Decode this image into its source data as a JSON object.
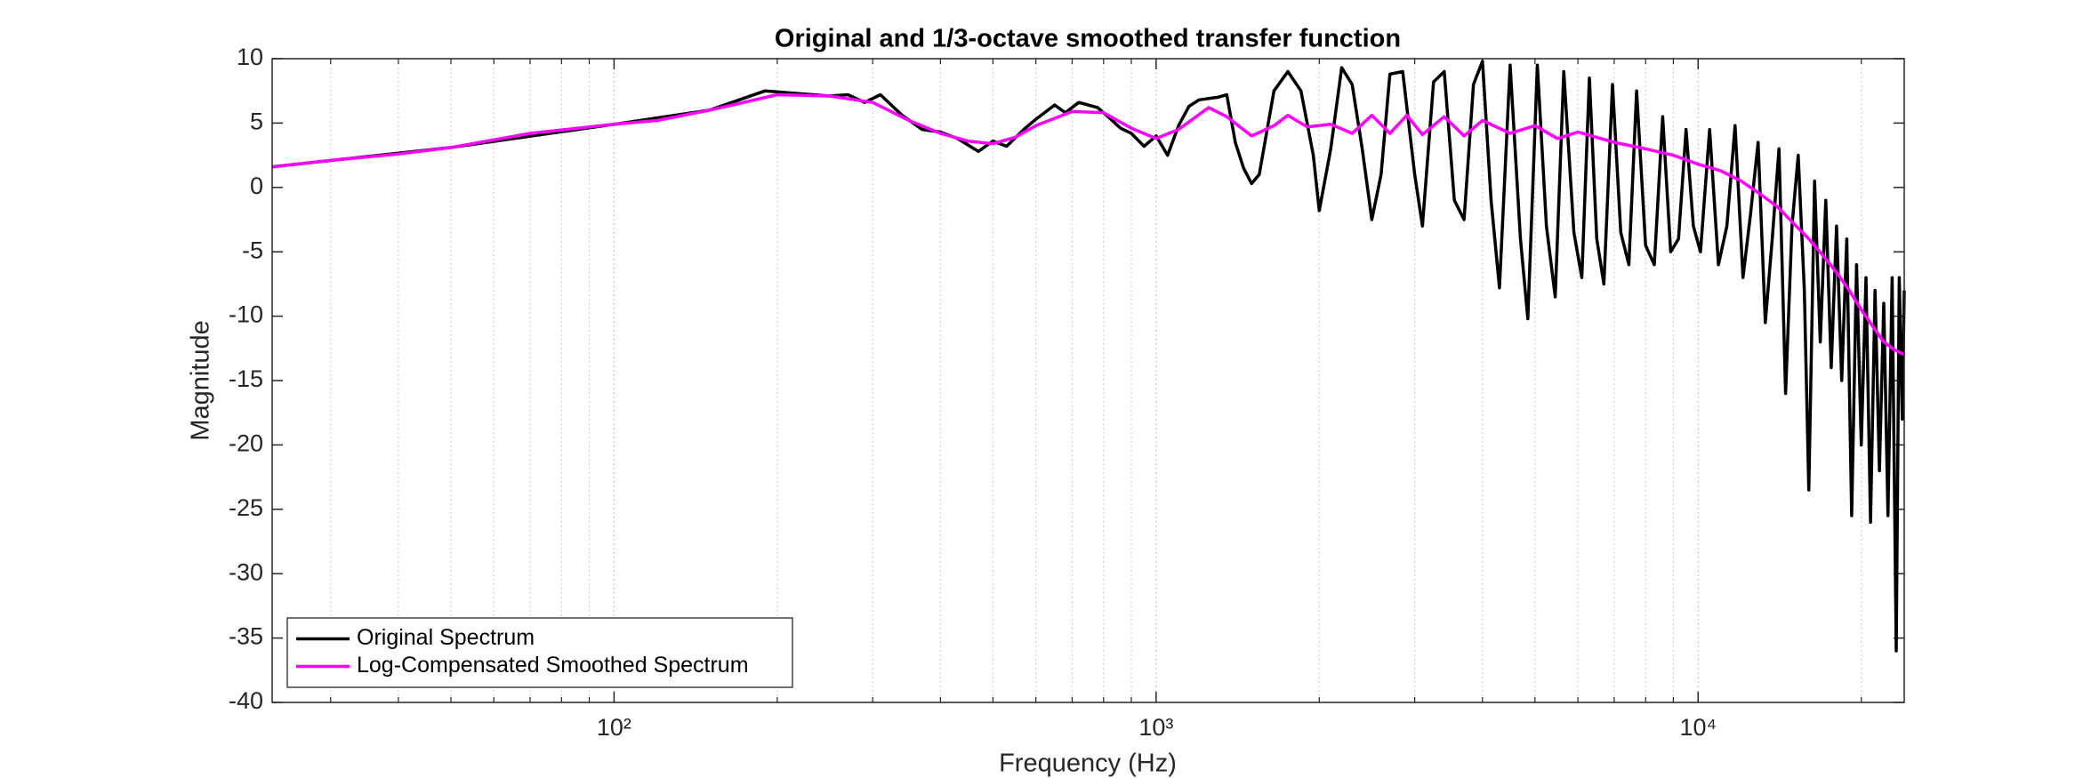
{
  "chart_data": {
    "type": "line",
    "title": "Original and 1/3-octave smoothed transfer function",
    "xlabel": "Frequency (Hz)",
    "ylabel": "Magnitude",
    "xscale": "log",
    "xlim": [
      23.4,
      24000
    ],
    "ylim": [
      -40,
      10
    ],
    "xticks": [
      {
        "value": 100,
        "label": "10²"
      },
      {
        "value": 1000,
        "label": "10³"
      },
      {
        "value": 10000,
        "label": "10⁴"
      }
    ],
    "xminorticks": [
      30,
      40,
      50,
      60,
      70,
      80,
      90,
      200,
      300,
      400,
      500,
      600,
      700,
      800,
      900,
      2000,
      3000,
      4000,
      5000,
      6000,
      7000,
      8000,
      9000,
      20000
    ],
    "yticks": [
      -40,
      -35,
      -30,
      -25,
      -20,
      -15,
      -10,
      -5,
      0,
      5,
      10
    ],
    "xgrid": true,
    "legend": "lower left",
    "series": [
      {
        "name": "Original Spectrum",
        "color": "#000000",
        "x": [
          23.4,
          50,
          100,
          150,
          190,
          250,
          270,
          290,
          310,
          340,
          370,
          400,
          430,
          470,
          500,
          530,
          570,
          600,
          650,
          680,
          720,
          780,
          820,
          860,
          900,
          950,
          1000,
          1050,
          1100,
          1150,
          1200,
          1300,
          1350,
          1400,
          1450,
          1500,
          1550,
          1650,
          1750,
          1850,
          1950,
          2000,
          2100,
          2200,
          2300,
          2400,
          2500,
          2600,
          2700,
          2850,
          3000,
          3100,
          3250,
          3400,
          3550,
          3700,
          3850,
          4000,
          4150,
          4300,
          4500,
          4700,
          4850,
          5050,
          5250,
          5450,
          5650,
          5900,
          6100,
          6300,
          6500,
          6700,
          6950,
          7200,
          7450,
          7700,
          8000,
          8300,
          8600,
          8900,
          9200,
          9500,
          9800,
          10100,
          10500,
          10900,
          11300,
          11700,
          12100,
          12500,
          12900,
          13300,
          13700,
          14100,
          14500,
          14900,
          15300,
          15700,
          16000,
          16400,
          16800,
          17200,
          17600,
          18000,
          18400,
          18800,
          19200,
          19600,
          20000,
          20400,
          20800,
          21200,
          21600,
          22000,
          22400,
          22800,
          23200,
          23500,
          23800,
          24000
        ],
        "values": [
          1.6,
          3.1,
          4.9,
          6.0,
          7.5,
          7.1,
          7.2,
          6.6,
          7.2,
          5.6,
          4.5,
          4.3,
          3.8,
          2.8,
          3.6,
          3.2,
          4.5,
          5.3,
          6.4,
          5.8,
          6.6,
          6.2,
          5.4,
          4.6,
          4.2,
          3.2,
          4.0,
          2.5,
          4.8,
          6.3,
          6.8,
          7.0,
          7.2,
          3.5,
          1.5,
          0.3,
          1.0,
          7.5,
          9.0,
          7.5,
          2.5,
          -1.8,
          3.0,
          9.3,
          8.0,
          3.0,
          -2.5,
          1.0,
          8.8,
          9.0,
          1.0,
          -3.0,
          8.2,
          9.0,
          -1.0,
          -2.5,
          8.0,
          9.8,
          -1.0,
          -7.8,
          9.5,
          -4.0,
          -10.2,
          9.5,
          -3.0,
          -8.5,
          9.0,
          -3.5,
          -7.0,
          8.5,
          -4.0,
          -7.5,
          8.0,
          -3.5,
          -6.0,
          7.5,
          -4.5,
          -6.0,
          5.5,
          -5.0,
          -4.0,
          4.5,
          -3.0,
          -5.0,
          4.5,
          -6.0,
          -3.0,
          4.8,
          -7.0,
          -2.0,
          3.5,
          -10.5,
          -4.0,
          3.0,
          -16.0,
          -3.0,
          2.5,
          -8.0,
          -23.5,
          0.5,
          -12.0,
          -1.0,
          -14.0,
          -3.0,
          -15.0,
          -4.0,
          -25.5,
          -6.0,
          -20.0,
          -7.0,
          -26.0,
          -8.0,
          -22.0,
          -9.0,
          -25.5,
          -7.0,
          -36.0,
          -7.0,
          -18.0,
          -8.0
        ]
      },
      {
        "name": "Log-Compensated Smoothed Spectrum",
        "color": "#ff00ff",
        "x": [
          23.4,
          30,
          40,
          50,
          70,
          100,
          120,
          150,
          200,
          250,
          300,
          350,
          400,
          450,
          500,
          550,
          600,
          700,
          800,
          900,
          1000,
          1100,
          1250,
          1350,
          1500,
          1650,
          1750,
          1900,
          2100,
          2300,
          2500,
          2700,
          2900,
          3100,
          3400,
          3700,
          4000,
          4500,
          5000,
          5500,
          6000,
          7000,
          8000,
          9000,
          10000,
          11000,
          12000,
          13000,
          14000,
          15000,
          16000,
          17000,
          18000,
          19000,
          20000,
          21000,
          22000,
          23000,
          24000
        ],
        "values": [
          1.6,
          2.1,
          2.6,
          3.1,
          4.2,
          4.9,
          5.2,
          6.0,
          7.2,
          7.1,
          6.6,
          5.2,
          4.2,
          3.6,
          3.4,
          3.9,
          4.8,
          5.9,
          5.8,
          4.6,
          3.8,
          4.5,
          6.2,
          5.5,
          4.0,
          4.8,
          5.6,
          4.7,
          4.9,
          4.2,
          5.6,
          4.2,
          5.6,
          4.1,
          5.5,
          4.0,
          5.2,
          4.2,
          4.8,
          3.8,
          4.3,
          3.5,
          3.0,
          2.5,
          1.8,
          1.3,
          0.5,
          -0.5,
          -1.5,
          -2.8,
          -4.0,
          -5.3,
          -6.6,
          -8.0,
          -9.5,
          -10.8,
          -12.0,
          -12.6,
          -13.0
        ]
      }
    ]
  }
}
